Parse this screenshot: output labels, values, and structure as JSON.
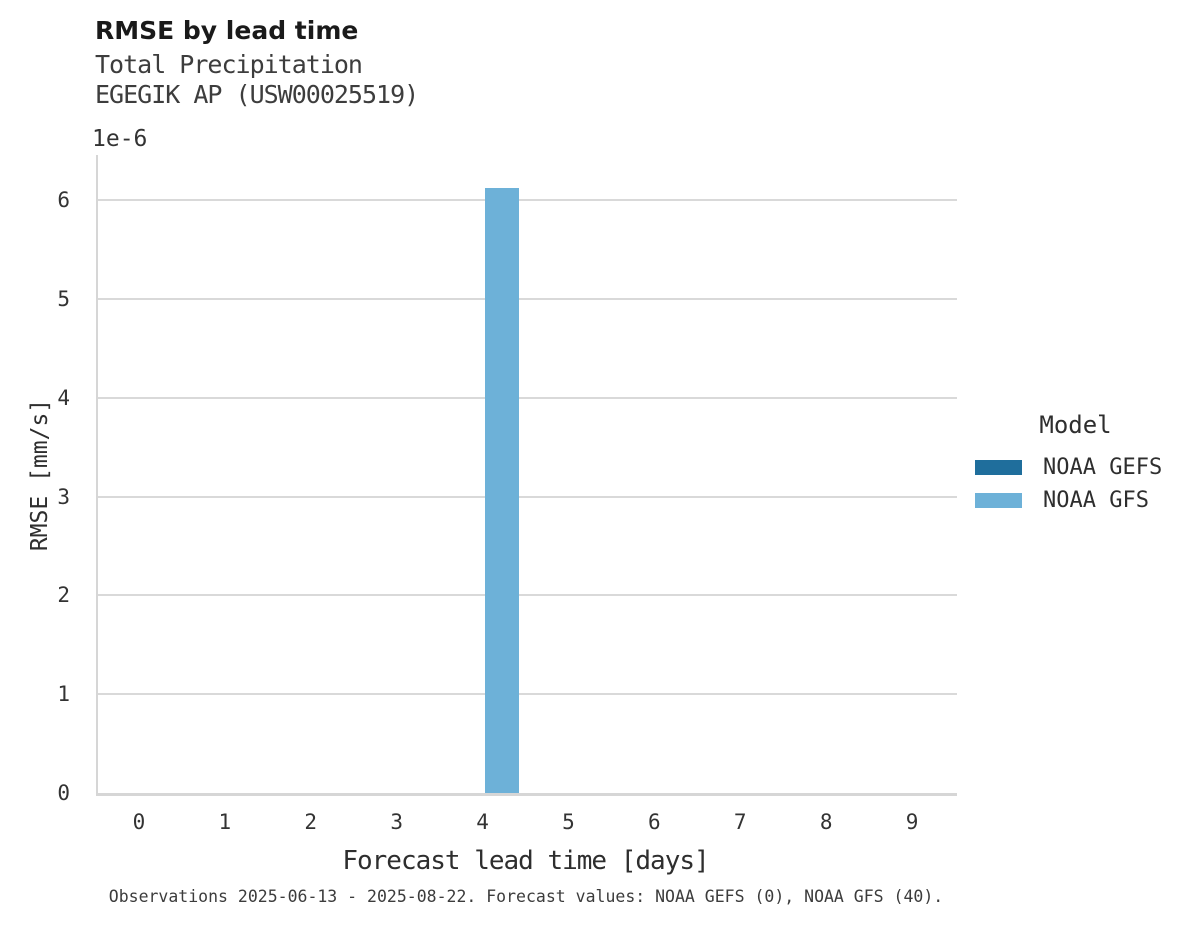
{
  "chart_data": {
    "type": "bar",
    "title": "RMSE by lead time",
    "subtitle": [
      "Total Precipitation",
      "EGEGIK AP (USW00025519)"
    ],
    "categories": [
      0,
      1,
      2,
      3,
      4,
      5,
      6,
      7,
      8,
      9
    ],
    "series": [
      {
        "name": "NOAA GEFS",
        "color": "#1f6e9c",
        "values": [
          null,
          null,
          null,
          null,
          null,
          null,
          null,
          null,
          null,
          null
        ]
      },
      {
        "name": "NOAA GFS",
        "color": "#6db1d8",
        "values": [
          null,
          null,
          null,
          null,
          6.13e-06,
          null,
          null,
          null,
          null,
          null
        ]
      }
    ],
    "xlabel": "Forecast lead time [days]",
    "ylabel": "RMSE [mm/s]",
    "y_offset_label": "1e-6",
    "yticks": [
      0,
      1,
      2,
      3,
      4,
      5,
      6
    ],
    "ylim": [
      0,
      6.46e-06
    ],
    "legend_title": "Model",
    "legend_position": "right",
    "grid": "horizontal",
    "colors": {
      "gridline": "#d9d9d9",
      "spine": "#d6d6d6",
      "noaa_gefs": "#1f6e9c",
      "noaa_gfs": "#6db1d8"
    }
  },
  "footer": {
    "caption": "Observations 2025-06-13 - 2025-08-22. Forecast values: NOAA GEFS (0), NOAA GFS (40)."
  }
}
